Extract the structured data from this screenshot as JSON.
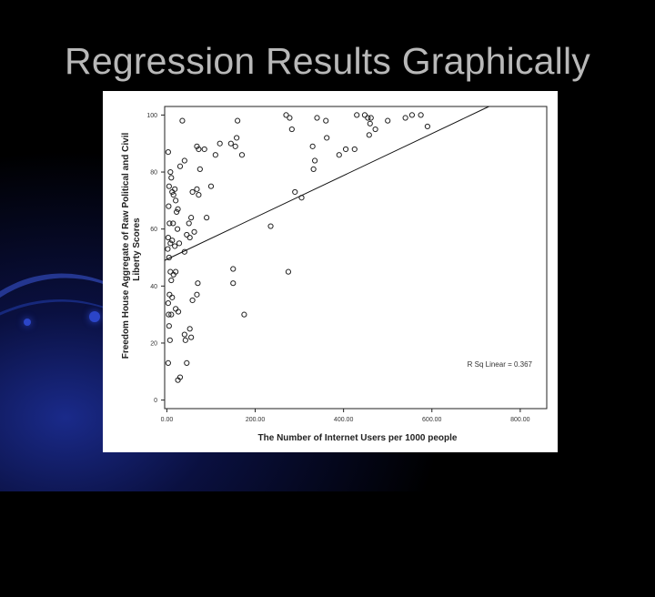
{
  "slide": {
    "title": "Regression Results Graphically"
  },
  "chart_data": {
    "type": "scatter",
    "title": "",
    "xlabel": "The Number of Internet Users per 1000 people",
    "ylabel_line1": "Freedom House Aggregate of Raw Political and Civil",
    "ylabel_line2": "Liberty Scores",
    "xlim": [
      -5,
      860
    ],
    "ylim": [
      -3,
      103
    ],
    "x_ticks": [
      0,
      200,
      400,
      600,
      800
    ],
    "x_tick_labels": [
      "0.00",
      "200.00",
      "400.00",
      "600.00",
      "800.00"
    ],
    "y_ticks": [
      0,
      20,
      40,
      60,
      80,
      100
    ],
    "y_tick_labels": [
      "0",
      "20",
      "40",
      "60",
      "80",
      "100"
    ],
    "fit_line": {
      "label": "R Sq Linear = 0.367",
      "x": [
        -5,
        770
      ],
      "y": [
        49,
        106
      ]
    },
    "points": [
      {
        "x": 3,
        "y": 87
      },
      {
        "x": 5,
        "y": 75
      },
      {
        "x": 8,
        "y": 80
      },
      {
        "x": 10,
        "y": 78
      },
      {
        "x": 12,
        "y": 73
      },
      {
        "x": 15,
        "y": 72
      },
      {
        "x": 18,
        "y": 74
      },
      {
        "x": 20,
        "y": 70
      },
      {
        "x": 25,
        "y": 67
      },
      {
        "x": 30,
        "y": 82
      },
      {
        "x": 22,
        "y": 66
      },
      {
        "x": 4,
        "y": 68
      },
      {
        "x": 6,
        "y": 62
      },
      {
        "x": 14,
        "y": 62
      },
      {
        "x": 24,
        "y": 60
      },
      {
        "x": 3,
        "y": 57
      },
      {
        "x": 8,
        "y": 55
      },
      {
        "x": 2,
        "y": 53
      },
      {
        "x": 12,
        "y": 56
      },
      {
        "x": 18,
        "y": 54
      },
      {
        "x": 28,
        "y": 55
      },
      {
        "x": 5,
        "y": 50
      },
      {
        "x": 10,
        "y": 42
      },
      {
        "x": 15,
        "y": 44
      },
      {
        "x": 20,
        "y": 45
      },
      {
        "x": 8,
        "y": 45
      },
      {
        "x": 6,
        "y": 37
      },
      {
        "x": 3,
        "y": 34
      },
      {
        "x": 12,
        "y": 36
      },
      {
        "x": 4,
        "y": 30
      },
      {
        "x": 10,
        "y": 30
      },
      {
        "x": 20,
        "y": 32
      },
      {
        "x": 26,
        "y": 31
      },
      {
        "x": 5,
        "y": 26
      },
      {
        "x": 7,
        "y": 21
      },
      {
        "x": 3,
        "y": 13
      },
      {
        "x": 35,
        "y": 98
      },
      {
        "x": 55,
        "y": 64
      },
      {
        "x": 40,
        "y": 52
      },
      {
        "x": 45,
        "y": 58
      },
      {
        "x": 50,
        "y": 62
      },
      {
        "x": 52,
        "y": 57
      },
      {
        "x": 40,
        "y": 23
      },
      {
        "x": 55,
        "y": 22
      },
      {
        "x": 52,
        "y": 25
      },
      {
        "x": 45,
        "y": 13
      },
      {
        "x": 42,
        "y": 21
      },
      {
        "x": 30,
        "y": 8
      },
      {
        "x": 25,
        "y": 7
      },
      {
        "x": 58,
        "y": 35
      },
      {
        "x": 40,
        "y": 84
      },
      {
        "x": 58,
        "y": 73
      },
      {
        "x": 68,
        "y": 74
      },
      {
        "x": 72,
        "y": 72
      },
      {
        "x": 62,
        "y": 59
      },
      {
        "x": 68,
        "y": 37
      },
      {
        "x": 70,
        "y": 41
      },
      {
        "x": 75,
        "y": 81
      },
      {
        "x": 72,
        "y": 88
      },
      {
        "x": 68,
        "y": 89
      },
      {
        "x": 85,
        "y": 88
      },
      {
        "x": 90,
        "y": 64
      },
      {
        "x": 110,
        "y": 86
      },
      {
        "x": 120,
        "y": 90
      },
      {
        "x": 100,
        "y": 75
      },
      {
        "x": 145,
        "y": 90
      },
      {
        "x": 160,
        "y": 98
      },
      {
        "x": 158,
        "y": 92
      },
      {
        "x": 155,
        "y": 89
      },
      {
        "x": 170,
        "y": 86
      },
      {
        "x": 150,
        "y": 41
      },
      {
        "x": 150,
        "y": 46
      },
      {
        "x": 175,
        "y": 30
      },
      {
        "x": 235,
        "y": 61
      },
      {
        "x": 270,
        "y": 100
      },
      {
        "x": 278,
        "y": 99
      },
      {
        "x": 283,
        "y": 95
      },
      {
        "x": 290,
        "y": 73
      },
      {
        "x": 305,
        "y": 71
      },
      {
        "x": 275,
        "y": 45
      },
      {
        "x": 330,
        "y": 89
      },
      {
        "x": 335,
        "y": 84
      },
      {
        "x": 332,
        "y": 81
      },
      {
        "x": 340,
        "y": 99
      },
      {
        "x": 360,
        "y": 98
      },
      {
        "x": 362,
        "y": 92
      },
      {
        "x": 390,
        "y": 86
      },
      {
        "x": 405,
        "y": 88
      },
      {
        "x": 425,
        "y": 88
      },
      {
        "x": 430,
        "y": 100
      },
      {
        "x": 448,
        "y": 100
      },
      {
        "x": 455,
        "y": 99
      },
      {
        "x": 460,
        "y": 97
      },
      {
        "x": 458,
        "y": 93
      },
      {
        "x": 472,
        "y": 95
      },
      {
        "x": 500,
        "y": 98
      },
      {
        "x": 540,
        "y": 99
      },
      {
        "x": 555,
        "y": 100
      },
      {
        "x": 575,
        "y": 100
      },
      {
        "x": 590,
        "y": 96
      },
      {
        "x": 462,
        "y": 99
      }
    ]
  }
}
